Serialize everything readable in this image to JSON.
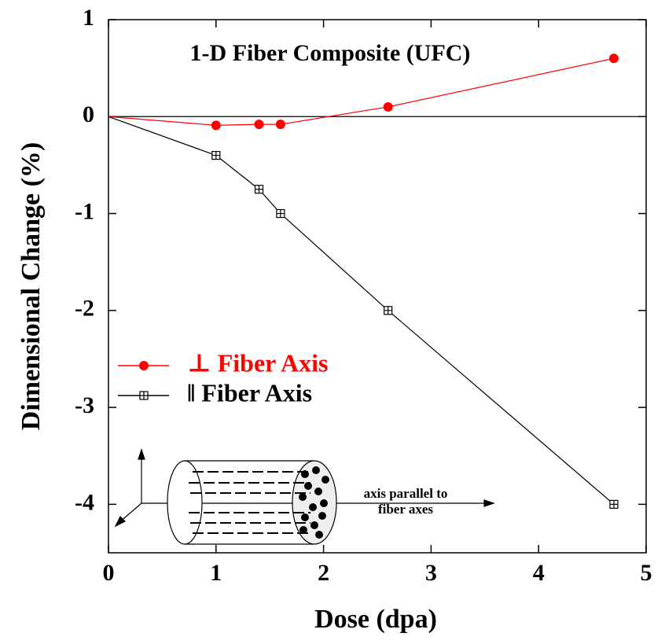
{
  "chart_data": {
    "type": "line",
    "title": "1-D Fiber Composite (UFC)",
    "xlabel": "Dose (dpa)",
    "ylabel": "Dimensional Change (%)",
    "xlim": [
      0,
      5
    ],
    "xticks": [
      0,
      1,
      2,
      3,
      4,
      5
    ],
    "ylim": [
      -4.5,
      1
    ],
    "yticks": [
      -4,
      -3,
      -2,
      -1,
      0,
      1
    ],
    "hline": 0,
    "legend": "left",
    "series": [
      {
        "name": "⊥ Fiber Axis",
        "color": "#ff0000",
        "marker": "circle",
        "x": [
          0,
          1,
          1.4,
          1.6,
          2.6,
          4.7
        ],
        "values": [
          0,
          -0.09,
          -0.08,
          -0.08,
          0.1,
          0.6
        ]
      },
      {
        "name": "‖ Fiber Axis",
        "color": "#000000",
        "marker": "square-plus",
        "x": [
          0,
          1,
          1.4,
          1.6,
          2.6,
          4.7
        ],
        "values": [
          0,
          -0.4,
          -0.75,
          -1.0,
          -2.0,
          -4.0
        ]
      }
    ],
    "annotations": [
      "axis parallel to",
      "fiber axes"
    ]
  }
}
